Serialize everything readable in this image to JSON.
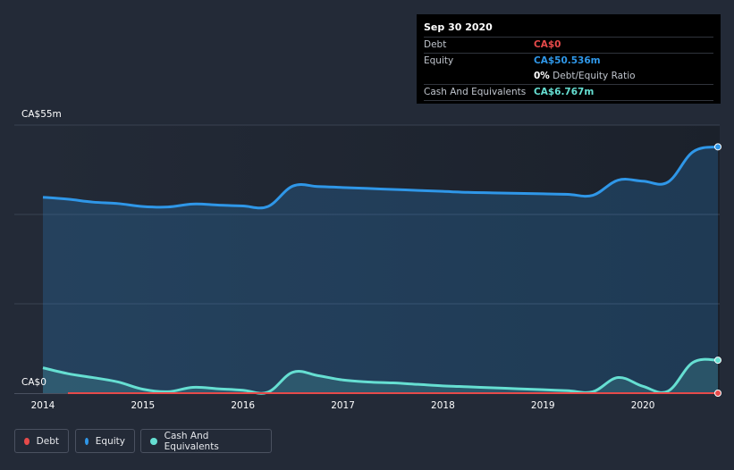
{
  "tooltip": {
    "date": "Sep 30 2020",
    "rows": [
      {
        "label": "Debt",
        "value": "CA$0"
      },
      {
        "label": "Equity",
        "value": "CA$50.536m"
      },
      {
        "label": "",
        "value_num": "0%",
        "value_txt": "Debt/Equity Ratio"
      },
      {
        "label": "Cash And Equivalents",
        "value": "CA$6.767m"
      }
    ]
  },
  "colors": {
    "debt": "#e64a4a",
    "equity": "#2f97e8",
    "cash": "#66dfd2",
    "background": "#232a37"
  },
  "legend": [
    {
      "label": "Debt",
      "color": "#e64a4a"
    },
    {
      "label": "Equity",
      "color": "#2f97e8"
    },
    {
      "label": "Cash And Equivalents",
      "color": "#66dfd2"
    }
  ],
  "chart_data": {
    "type": "area",
    "y_top_label": "CA$55m",
    "y_bottom_label": "CA$0",
    "ylim": [
      0,
      55
    ],
    "xlim": [
      2014.0,
      2020.75
    ],
    "x_tick_labels": [
      "2014",
      "2015",
      "2016",
      "2017",
      "2018",
      "2019",
      "2020"
    ],
    "x_ticks": [
      2014,
      2015,
      2016,
      2017,
      2018,
      2019,
      2020
    ],
    "series": [
      {
        "name": "Equity",
        "x": [
          2014.0,
          2014.25,
          2014.5,
          2014.75,
          2015.0,
          2015.25,
          2015.5,
          2015.75,
          2016.0,
          2016.25,
          2016.5,
          2016.75,
          2017.0,
          2017.25,
          2017.5,
          2017.75,
          2018.0,
          2018.25,
          2018.5,
          2018.75,
          2019.0,
          2019.25,
          2019.5,
          2019.75,
          2020.0,
          2020.25,
          2020.5,
          2020.75
        ],
        "values": [
          40.2,
          39.8,
          39.2,
          38.9,
          38.3,
          38.2,
          38.8,
          38.6,
          38.4,
          38.3,
          42.5,
          42.4,
          42.2,
          42.0,
          41.8,
          41.6,
          41.4,
          41.2,
          41.1,
          41.0,
          40.9,
          40.8,
          40.6,
          43.7,
          43.5,
          43.3,
          49.5,
          50.536
        ]
      },
      {
        "name": "Cash And Equivalents",
        "x": [
          2014.0,
          2014.25,
          2014.5,
          2014.75,
          2015.0,
          2015.25,
          2015.5,
          2015.75,
          2016.0,
          2016.25,
          2016.5,
          2016.75,
          2017.0,
          2017.25,
          2017.5,
          2017.75,
          2018.0,
          2018.25,
          2018.5,
          2018.75,
          2019.0,
          2019.25,
          2019.5,
          2019.75,
          2020.0,
          2020.25,
          2020.5,
          2020.75
        ],
        "values": [
          5.2,
          4.0,
          3.2,
          2.3,
          0.8,
          0.3,
          1.2,
          0.9,
          0.6,
          0.2,
          4.3,
          3.6,
          2.7,
          2.3,
          2.1,
          1.8,
          1.5,
          1.3,
          1.1,
          0.9,
          0.7,
          0.5,
          0.3,
          3.2,
          1.4,
          0.4,
          6.3,
          6.767
        ]
      },
      {
        "name": "Debt",
        "x": [
          2014.25,
          2020.75
        ],
        "values": [
          0,
          0
        ]
      }
    ]
  }
}
